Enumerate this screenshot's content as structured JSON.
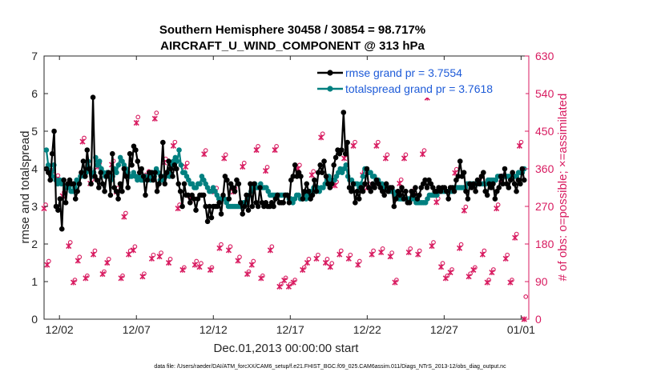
{
  "chart_data": {
    "type": "line",
    "title": "Southern Hemisphere 30458 / 30854 = 98.717%",
    "subtitle": "AIRCRAFT_U_WIND_COMPONENT @ 313 hPa",
    "xlabel": "Dec.01,2013 00:00:00 start",
    "ylabel": "rmse and totalspread",
    "y2label": "# of obs: o=possible; ×=assimilated",
    "xlim": [
      0,
      31.5
    ],
    "ylim": [
      0,
      7
    ],
    "y2lim": [
      0,
      630
    ],
    "x_ticks": [
      1,
      6,
      11,
      16,
      21,
      26,
      31
    ],
    "x_tick_labels": [
      "12/02",
      "12/07",
      "12/12",
      "12/17",
      "12/22",
      "12/27",
      "01/01"
    ],
    "y_ticks": [
      "0",
      "1",
      "2",
      "3",
      "4",
      "5",
      "6",
      "7"
    ],
    "y2_ticks": [
      "0",
      "90",
      "180",
      "270",
      "360",
      "450",
      "540",
      "630"
    ],
    "footnote": "data file: /Users/raeder/DAI/ATM_forcXX/CAM6_setup/f.e21.FHIST_BGC.f09_025.CAM6assim.011/Diags_NTrS_2013-12/obs_diag_output.nc",
    "colors": {
      "rmse": "#000000",
      "spread": "#008080",
      "obs": "#d81b60",
      "legend_text": "#1e5bd8"
    },
    "series": [
      {
        "name": "rmse grand pr = 3.7554",
        "axis": "left",
        "values": [
          4.0,
          3.9,
          3.7,
          4.4,
          5.0,
          3.0,
          2.9,
          3.2,
          2.4,
          3.7,
          3.1,
          3.6,
          3.7,
          3.6,
          3.6,
          3.2,
          3.4,
          3.6,
          3.9,
          4.2,
          3.8,
          4.5,
          4.0,
          3.6,
          5.9,
          3.8,
          3.7,
          3.5,
          3.9,
          3.6,
          3.4,
          3.8,
          3.9,
          3.3,
          4.4,
          3.5,
          3.4,
          3.2,
          3.6,
          3.4,
          4.0,
          3.8,
          3.5,
          4.4,
          4.1,
          4.6,
          4.5,
          4.2,
          3.9,
          4.0,
          3.8,
          3.3,
          3.7,
          3.9,
          3.9,
          3.7,
          3.9,
          3.4,
          3.6,
          3.8,
          4.7,
          3.6,
          3.9,
          4.2,
          4.0,
          3.8,
          4.1,
          4.0,
          3.6,
          3.4,
          3.0,
          3.6,
          3.3,
          3.3,
          3.1,
          3.3,
          3.2,
          2.9,
          3.2,
          3.3,
          3.3,
          3.3,
          3.0,
          2.6,
          3.0,
          2.7,
          3.0,
          3.0,
          3.0,
          3.1,
          2.8,
          3.3,
          3.8,
          3.7,
          3.2,
          3.6,
          3.5,
          3.4,
          3.7,
          3.6,
          3.1,
          2.8,
          3.0,
          3.3,
          2.9,
          3.6,
          3.0,
          3.6,
          3.1,
          3.0,
          3.5,
          3.1,
          3.0,
          3.1,
          3.0,
          3.0,
          3.1,
          3.0,
          3.2,
          3.3,
          3.1,
          3.1,
          3.1,
          3.3,
          3.3,
          3.1,
          3.7,
          3.8,
          4.1,
          3.8,
          3.9,
          3.8,
          3.2,
          3.4,
          3.6,
          3.4,
          3.2,
          3.3,
          3.7,
          3.4,
          3.9,
          4.1,
          3.9,
          4.2,
          3.8,
          3.6,
          3.5,
          3.6,
          4.1,
          4.3,
          4.5,
          4.4,
          4.5,
          5.5,
          4.4,
          4.7,
          3.5,
          3.4,
          3.6,
          3.1,
          3.4,
          3.2,
          3.5,
          3.4,
          3.6,
          4.0,
          3.5,
          3.4,
          3.6,
          3.5,
          3.7,
          3.6,
          3.5,
          3.4,
          3.3,
          3.6,
          3.4,
          3.5,
          3.5,
          3.0,
          3.2,
          3.4,
          3.3,
          3.5,
          3.2,
          3.4,
          3.1,
          3.1,
          3.4,
          3.3,
          3.5,
          3.2,
          3.3,
          3.5,
          3.6,
          3.7,
          3.5,
          3.7,
          3.6,
          3.5,
          3.4,
          3.4,
          3.5,
          3.4,
          3.5,
          3.5,
          3.4,
          3.2,
          3.5,
          3.5,
          3.4,
          3.7,
          3.8,
          4.2,
          3.8,
          3.9,
          3.4,
          3.2,
          3.6,
          3.5,
          3.6,
          3.4,
          3.7,
          3.6,
          3.8,
          3.9,
          3.4,
          3.3,
          3.6,
          3.5,
          3.6,
          3.2,
          3.4,
          3.5,
          3.8,
          3.6,
          4.0,
          3.6,
          3.5,
          3.7,
          3.9,
          3.6,
          3.4,
          3.7,
          3.6,
          4.0,
          3.7
        ]
      },
      {
        "name": "totalspread grand pr = 3.7618",
        "axis": "left",
        "values": [
          4.5,
          4.1,
          3.9,
          3.8,
          4.1,
          3.7,
          3.6,
          3.7,
          3.6,
          3.7,
          3.5,
          3.5,
          3.5,
          3.4,
          3.4,
          3.5,
          3.7,
          3.6,
          3.8,
          3.9,
          3.8,
          3.9,
          4.2,
          4.0,
          3.8,
          3.9,
          4.3,
          4.1,
          4.2,
          4.0,
          3.9,
          3.8,
          3.9,
          3.8,
          3.7,
          3.8,
          4.0,
          3.9,
          4.1,
          4.3,
          4.2,
          4.1,
          4.0,
          3.9,
          3.8,
          3.8,
          3.9,
          3.8,
          3.7,
          3.8,
          3.7,
          3.7,
          3.8,
          3.7,
          3.8,
          3.7,
          3.9,
          3.8,
          4.0,
          3.9,
          3.7,
          3.7,
          3.8,
          3.8,
          3.9,
          3.8,
          4.1,
          4.2,
          4.3,
          4.2,
          4.5,
          4.1,
          3.9,
          3.9,
          3.8,
          3.7,
          3.6,
          3.6,
          3.5,
          3.5,
          3.6,
          3.6,
          3.8,
          3.7,
          3.6,
          3.5,
          3.4,
          3.4,
          3.5,
          3.4,
          3.3,
          3.2,
          3.2,
          3.2,
          3.2,
          3.1,
          3.0,
          3.0,
          3.0,
          3.0,
          3.0,
          3.0,
          3.0,
          3.0,
          3.1,
          3.1,
          3.2,
          3.3,
          3.4,
          3.5,
          3.6,
          3.5,
          3.5,
          3.6,
          3.5,
          3.5,
          3.5,
          3.4,
          3.3,
          3.3,
          3.3,
          3.3,
          3.3,
          3.3,
          3.3,
          3.3,
          3.3,
          3.3,
          3.2,
          3.2,
          3.1,
          3.2,
          3.3,
          3.3,
          3.2,
          3.2,
          3.3,
          3.2,
          3.3,
          3.4,
          3.4,
          3.5,
          3.4,
          3.5,
          3.4,
          3.5,
          3.5,
          3.6,
          3.7,
          3.8,
          3.7,
          3.7,
          3.7,
          3.8,
          3.9,
          4.0,
          3.9,
          4.0,
          4.1,
          3.8,
          3.7,
          3.7,
          3.6,
          3.6,
          3.6,
          3.5,
          3.6,
          3.8,
          4.0,
          4.0,
          3.9,
          3.9,
          3.8,
          3.8,
          3.7,
          3.7,
          3.6,
          3.6,
          3.5,
          3.5,
          3.5,
          3.4,
          3.4,
          3.4,
          3.3,
          3.3,
          3.2,
          3.2,
          3.2,
          3.2,
          3.2,
          3.2,
          3.2,
          3.2,
          3.2,
          3.1,
          3.1,
          3.1,
          3.1,
          3.1,
          3.1,
          3.2,
          3.3,
          3.3,
          3.3,
          3.3,
          3.3,
          3.4,
          3.4,
          3.4,
          3.4,
          3.4,
          3.4,
          3.4,
          3.4,
          3.5,
          3.5,
          3.5,
          3.5,
          3.5,
          3.5,
          3.5,
          3.6,
          3.6,
          3.6,
          3.6,
          3.6,
          3.6,
          3.6,
          3.6,
          3.6,
          3.6,
          3.6,
          3.7,
          3.7,
          3.7,
          3.7,
          3.7,
          3.8,
          3.8,
          3.8,
          3.8,
          3.8,
          3.8,
          3.8,
          3.8,
          3.8,
          3.8,
          3.8,
          3.9,
          3.9,
          3.9,
          4.0
        ]
      },
      {
        "name": "obs possible",
        "axis": "right",
        "marker": "o",
        "x": [
          0.0,
          0.2,
          0.5,
          0.8,
          1.2,
          1.6,
          1.9,
          2.2,
          2.5,
          2.7,
          3.0,
          3.2,
          3.5,
          3.8,
          4.1,
          4.4,
          4.7,
          5.0,
          5.2,
          5.5,
          5.8,
          6.0,
          6.4,
          6.7,
          7.0,
          7.2,
          7.5,
          7.8,
          8.1,
          8.4,
          8.7,
          9.0,
          9.2,
          9.5,
          9.8,
          10.1,
          10.4,
          10.8,
          11.1,
          11.4,
          11.7,
          12.0,
          12.3,
          12.6,
          12.9,
          13.2,
          13.5,
          13.8,
          14.1,
          14.4,
          14.7,
          15.0,
          15.3,
          15.6,
          15.9,
          16.2,
          16.5,
          16.8,
          17.1,
          17.4,
          17.7,
          18.0,
          18.3,
          18.6,
          18.9,
          19.2,
          19.5,
          19.8,
          20.1,
          20.4,
          20.7,
          21.0,
          21.3,
          21.6,
          21.9,
          22.2,
          22.5,
          22.8,
          23.1,
          23.4,
          23.7,
          24.0,
          24.3,
          24.6,
          24.9,
          25.2,
          25.5,
          25.8,
          26.1,
          26.4,
          26.7,
          27.0,
          27.3,
          27.6,
          27.9,
          28.2,
          28.5,
          28.8,
          29.1,
          29.4,
          29.7,
          30.0,
          30.3,
          30.6,
          30.9,
          31.2
        ],
        "values": [
          270,
          135,
          360,
          340,
          300,
          180,
          90,
          145,
          430,
          100,
          330,
          160,
          370,
          110,
          140,
          375,
          310,
          100,
          250,
          160,
          170,
          480,
          105,
          350,
          150,
          490,
          155,
          380,
          140,
          420,
          270,
          120,
          370,
          290,
          135,
          130,
          400,
          120,
          310,
          175,
          390,
          170,
          310,
          145,
          370,
          110,
          135,
          410,
          100,
          360,
          170,
          410,
          80,
          95,
          80,
          90,
          365,
          120,
          140,
          350,
          150,
          440,
          140,
          130,
          325,
          160,
          390,
          150,
          420,
          135,
          350,
          320,
          160,
          420,
          165,
          390,
          155,
          90,
          330,
          390,
          165,
          310,
          160,
          400,
          560,
          180,
          285,
          130,
          100,
          115,
          355,
          175,
          265,
          105,
          120,
          330,
          160,
          90,
          115,
          270,
          340,
          150,
          90,
          200,
          420,
          50
        ]
      },
      {
        "name": "obs assimilated",
        "axis": "right",
        "marker": "x",
        "x": [
          0.0,
          0.2,
          0.5,
          0.8,
          1.2,
          1.6,
          1.9,
          2.2,
          2.5,
          2.7,
          3.0,
          3.2,
          3.5,
          3.8,
          4.1,
          4.4,
          4.7,
          5.0,
          5.2,
          5.5,
          5.8,
          6.0,
          6.4,
          6.7,
          7.0,
          7.2,
          7.5,
          7.8,
          8.1,
          8.4,
          8.7,
          9.0,
          9.2,
          9.5,
          9.8,
          10.1,
          10.4,
          10.8,
          11.1,
          11.4,
          11.7,
          12.0,
          12.3,
          12.6,
          12.9,
          13.2,
          13.5,
          13.8,
          14.1,
          14.4,
          14.7,
          15.0,
          15.3,
          15.6,
          15.9,
          16.2,
          16.5,
          16.8,
          17.1,
          17.4,
          17.7,
          18.0,
          18.3,
          18.6,
          18.9,
          19.2,
          19.5,
          19.8,
          20.1,
          20.4,
          20.7,
          21.0,
          21.3,
          21.6,
          21.9,
          22.2,
          22.5,
          22.8,
          23.1,
          23.4,
          23.7,
          24.0,
          24.3,
          24.6,
          24.9,
          25.2,
          25.5,
          25.8,
          26.1,
          26.4,
          26.7,
          27.0,
          27.3,
          27.6,
          27.9,
          28.2,
          28.5,
          28.8,
          29.1,
          29.4,
          29.7,
          30.0,
          30.3,
          30.6,
          30.9,
          31.2
        ],
        "values": [
          265,
          130,
          355,
          335,
          295,
          175,
          88,
          140,
          425,
          98,
          325,
          155,
          365,
          108,
          135,
          370,
          305,
          98,
          245,
          155,
          165,
          470,
          102,
          345,
          145,
          480,
          150,
          375,
          135,
          415,
          265,
          118,
          365,
          285,
          130,
          125,
          395,
          118,
          305,
          170,
          385,
          165,
          305,
          140,
          365,
          108,
          130,
          405,
          98,
          355,
          165,
          405,
          78,
          93,
          78,
          88,
          360,
          118,
          135,
          345,
          145,
          435,
          135,
          125,
          320,
          155,
          385,
          145,
          415,
          130,
          345,
          315,
          155,
          415,
          160,
          385,
          150,
          88,
          325,
          385,
          160,
          305,
          155,
          395,
          530,
          175,
          280,
          125,
          98,
          112,
          350,
          170,
          260,
          102,
          118,
          325,
          155,
          88,
          112,
          265,
          335,
          145,
          88,
          195,
          415,
          0
        ]
      }
    ]
  }
}
